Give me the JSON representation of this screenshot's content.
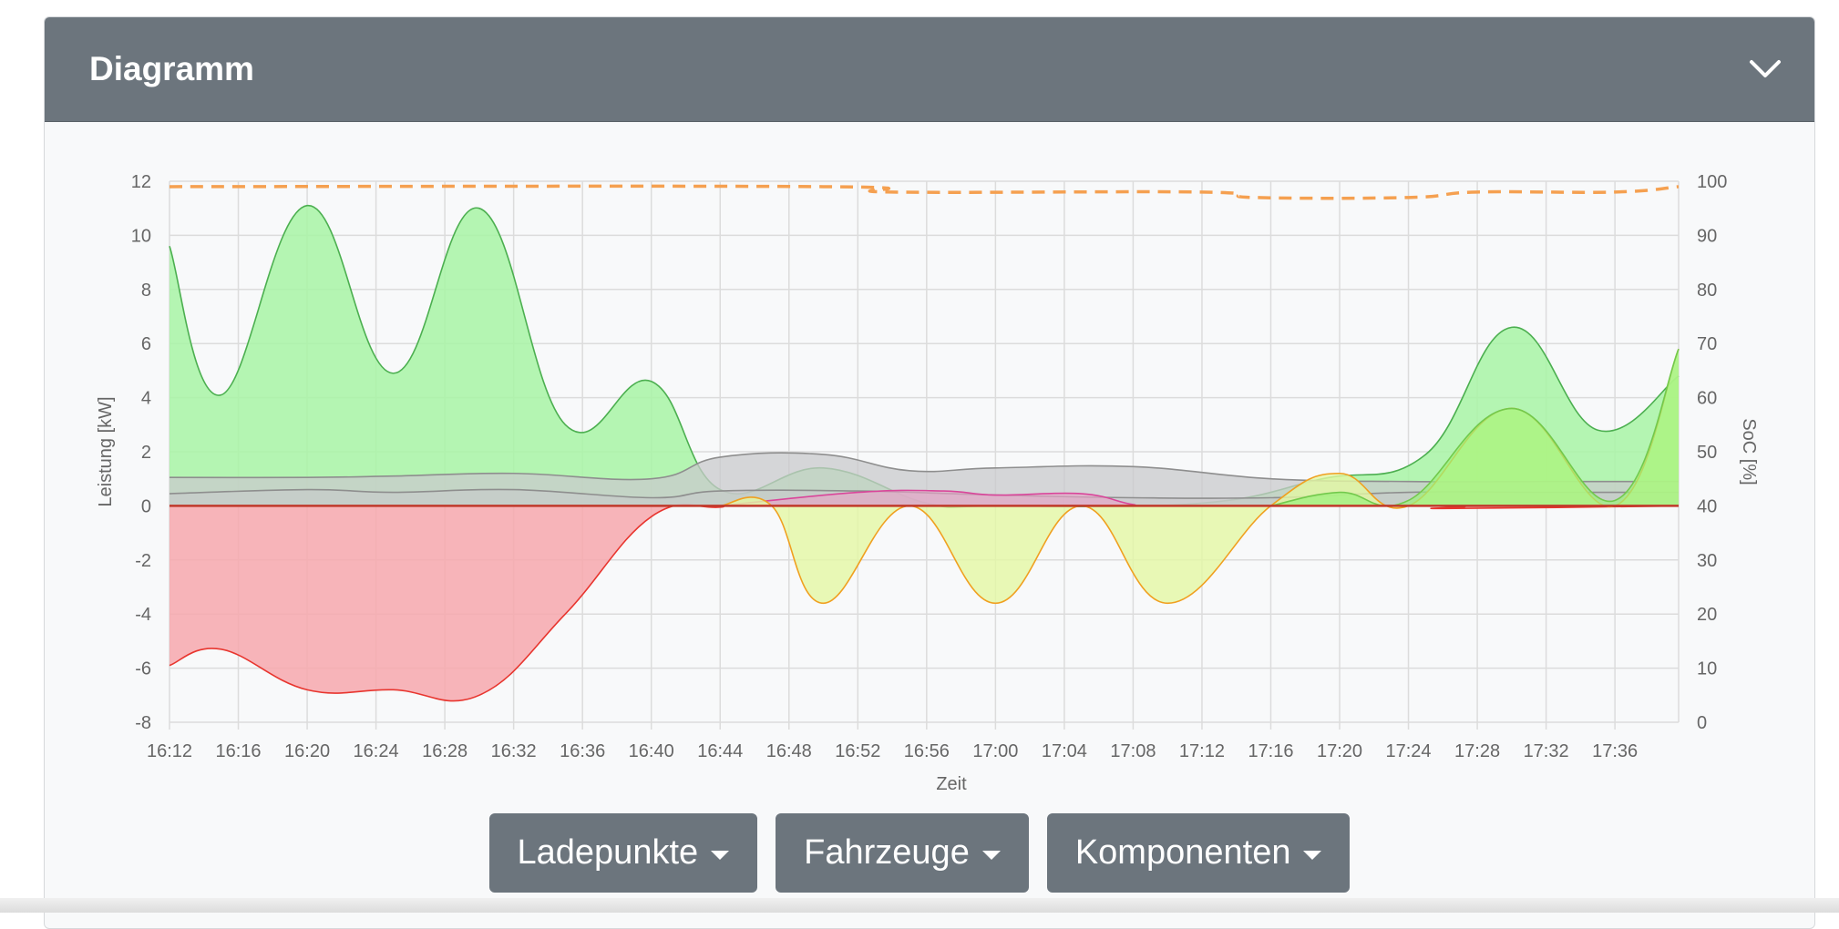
{
  "card": {
    "title": "Diagramm",
    "toggle_icon": "chevron-down-icon"
  },
  "buttons": [
    {
      "label": "Ladepunkte",
      "icon": "caret-down-icon"
    },
    {
      "label": "Fahrzeuge",
      "icon": "caret-down-icon"
    },
    {
      "label": "Komponenten",
      "icon": "caret-down-icon"
    }
  ],
  "chart_data": {
    "type": "area",
    "xlabel": "Zeit",
    "ylabel": "Leistung [kW]",
    "y2label": "SoC [%]",
    "ylim": [
      -8,
      12
    ],
    "y2lim": [
      0,
      100
    ],
    "yticks": [
      "12",
      "10",
      "8",
      "6",
      "4",
      "2",
      "0",
      "-2",
      "-4",
      "-6",
      "-8"
    ],
    "y2ticks": [
      "100",
      "90",
      "80",
      "70",
      "60",
      "50",
      "40",
      "30",
      "20",
      "10",
      "0"
    ],
    "x": [
      "16:12",
      "16:16",
      "16:20",
      "16:24",
      "16:28",
      "16:32",
      "16:36",
      "16:40",
      "16:44",
      "16:48",
      "16:52",
      "16:56",
      "17:00",
      "17:04",
      "17:08",
      "17:12",
      "17:16",
      "17:20",
      "17:24",
      "17:28",
      "17:32",
      "17:36"
    ],
    "x_minutes": [
      0,
      4,
      8,
      12,
      16,
      20,
      24,
      28,
      32,
      36,
      40,
      44,
      48,
      52,
      56,
      60,
      64,
      68,
      72,
      76,
      80,
      84
    ],
    "x_range_minutes": [
      0,
      87.7
    ],
    "grid": true,
    "colors": {
      "green_line": "#4caf50",
      "green_fill": "#a8f5a5",
      "red_line": "#e8352e",
      "red_fill": "#f7a8ad",
      "grey_line": "#8e8e8e",
      "grey_fill": "#c9c9cc",
      "yellow_line": "#f0a020",
      "yellow_fill": "#e3f7a4",
      "pink_line": "#d9469a",
      "pink_fill": "#e7a3c6",
      "soc_line": "#f5a050",
      "lime_fill": "#9af27a",
      "lime_line": "#72c94c"
    },
    "series": [
      {
        "kind": "area",
        "axis": "y",
        "color": "green",
        "points": [
          [
            0,
            9.6
          ],
          [
            3,
            4.1
          ],
          [
            8,
            11.1
          ],
          [
            13,
            4.9
          ],
          [
            18,
            11.0
          ],
          [
            23,
            3.0
          ],
          [
            28,
            4.6
          ],
          [
            32,
            0.6
          ],
          [
            38,
            1.4
          ],
          [
            44,
            0.1
          ],
          [
            48,
            0
          ],
          [
            60,
            0.1
          ],
          [
            67,
            1.0
          ],
          [
            73,
            1.9
          ],
          [
            78,
            6.6
          ],
          [
            83,
            2.8
          ],
          [
            87.7,
            4.8
          ]
        ]
      },
      {
        "kind": "area",
        "axis": "y",
        "color": "red",
        "points": [
          [
            0,
            -5.9
          ],
          [
            3,
            -5.3
          ],
          [
            8,
            -6.8
          ],
          [
            13,
            -6.8
          ],
          [
            18,
            -7.0
          ],
          [
            23,
            -4.0
          ],
          [
            28,
            -0.4
          ],
          [
            32,
            -0.05
          ],
          [
            35,
            0
          ],
          [
            72,
            0
          ],
          [
            74,
            -0.1
          ],
          [
            87.7,
            0
          ]
        ]
      },
      {
        "kind": "area",
        "axis": "y",
        "color": "grey",
        "points": [
          [
            0,
            1.05
          ],
          [
            8,
            1.05
          ],
          [
            13,
            1.1
          ],
          [
            20,
            1.2
          ],
          [
            28,
            1.0
          ],
          [
            32,
            1.8
          ],
          [
            38,
            1.9
          ],
          [
            43,
            1.3
          ],
          [
            48,
            1.4
          ],
          [
            56,
            1.45
          ],
          [
            64,
            1.0
          ],
          [
            72,
            0.9
          ],
          [
            80,
            0.9
          ],
          [
            87.7,
            0.9
          ]
        ]
      },
      {
        "kind": "area",
        "axis": "y",
        "color": "grey2",
        "points": [
          [
            0,
            0.45
          ],
          [
            8,
            0.6
          ],
          [
            13,
            0.5
          ],
          [
            20,
            0.6
          ],
          [
            28,
            0.3
          ],
          [
            32,
            0.55
          ],
          [
            40,
            0.55
          ],
          [
            48,
            0.4
          ],
          [
            56,
            0.3
          ],
          [
            64,
            0.3
          ],
          [
            72,
            0.5
          ],
          [
            80,
            0.5
          ],
          [
            87.7,
            0.5
          ]
        ]
      },
      {
        "kind": "area",
        "axis": "y",
        "color": "pink",
        "points": [
          [
            32,
            0
          ],
          [
            40,
            0.5
          ],
          [
            45,
            0.55
          ],
          [
            48,
            0.4
          ],
          [
            53,
            0.45
          ],
          [
            56,
            0.05
          ],
          [
            58,
            0
          ],
          [
            87.7,
            0
          ]
        ]
      },
      {
        "kind": "area",
        "axis": "y",
        "color": "yellow",
        "points": [
          [
            32,
            0
          ],
          [
            35,
            0
          ],
          [
            38,
            -3.6
          ],
          [
            43,
            0
          ],
          [
            48,
            -3.6
          ],
          [
            53,
            0
          ],
          [
            58,
            -3.6
          ],
          [
            64,
            0
          ],
          [
            68,
            1.2
          ],
          [
            72,
            0
          ],
          [
            78,
            3.6
          ],
          [
            84,
            0
          ],
          [
            87.7,
            5.8
          ]
        ]
      },
      {
        "kind": "area",
        "axis": "y",
        "color": "lime",
        "points": [
          [
            64,
            0
          ],
          [
            68,
            0.5
          ],
          [
            72,
            0.2
          ],
          [
            78,
            3.6
          ],
          [
            84,
            0.2
          ],
          [
            87.7,
            5.8
          ]
        ]
      },
      {
        "kind": "line",
        "axis": "y2",
        "color": "soc",
        "dashed": true,
        "points": [
          [
            0,
            99
          ],
          [
            38,
            99
          ],
          [
            42,
            98
          ],
          [
            60,
            98
          ],
          [
            63,
            97
          ],
          [
            72,
            97
          ],
          [
            76,
            98
          ],
          [
            84,
            98
          ],
          [
            87.7,
            99
          ]
        ]
      }
    ]
  }
}
